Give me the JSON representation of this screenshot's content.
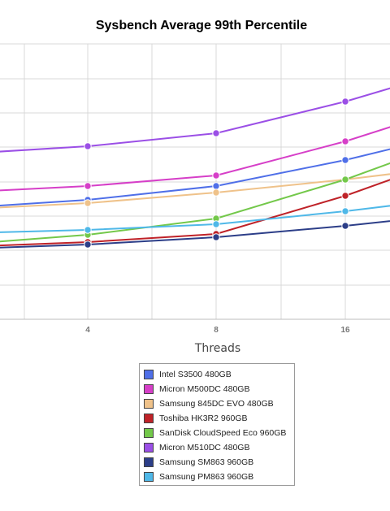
{
  "chart_data": {
    "type": "line",
    "title": "Sysbench Average 99th Percentile",
    "xlabel": "Threads",
    "ylabel": "",
    "x_ticks": [
      "4",
      "8",
      "16"
    ],
    "grid": true,
    "legend_position": "bottom",
    "series": [
      {
        "name": "Intel S3500 480GB",
        "color": "#4f6fe8",
        "values": [
          246,
          229,
          197
        ]
      },
      {
        "name": "Micron M500DC 480GB",
        "color": "#d63fc8",
        "values": [
          229,
          216,
          174
        ]
      },
      {
        "name": "Samsung 845DC EVO 480GB",
        "color": "#efc28a",
        "values": [
          250,
          237,
          221
        ]
      },
      {
        "name": "Toshiba HK3R2 960GB",
        "color": "#bf2228",
        "values": [
          298,
          288,
          241
        ]
      },
      {
        "name": "SanDisk CloudSpeed Eco 960GB",
        "color": "#73c84a",
        "values": [
          289,
          269,
          221
        ]
      },
      {
        "name": "Micron M510DC 480GB",
        "color": "#9b4fe6",
        "values": [
          180,
          164,
          125
        ]
      },
      {
        "name": "Samsung SM863 960GB",
        "color": "#2c3e88",
        "values": [
          301,
          292,
          278
        ]
      },
      {
        "name": "Samsung PM863 960GB",
        "color": "#4fb8e8",
        "values": [
          283,
          276,
          260
        ]
      }
    ]
  }
}
